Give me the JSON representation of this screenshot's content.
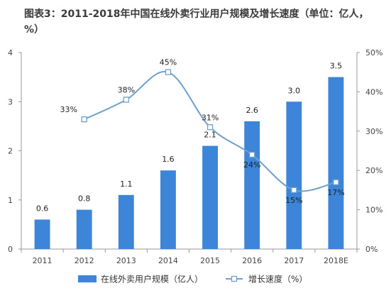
{
  "title": "图表3：2011-2018年中国在线外卖行业用户规模及增长速度（单位：亿人，%）",
  "chart_data": {
    "type": "bar",
    "title": "图表3：2011-2018年中国在线外卖行业用户规模及增长速度（单位：亿人，%）",
    "categories": [
      "2011",
      "2012",
      "2013",
      "2014",
      "2015",
      "2016",
      "2017",
      "2018E"
    ],
    "series": [
      {
        "name": "在线外卖用户规模（亿人）",
        "type": "bar",
        "axis": "left",
        "values": [
          0.6,
          0.8,
          1.1,
          1.6,
          2.1,
          2.6,
          3.0,
          3.5
        ],
        "labels": [
          "0.6",
          "0.8",
          "1.1",
          "1.6",
          "2.1",
          "2.6",
          "3.0",
          "3.5"
        ]
      },
      {
        "name": "增长速度（%）",
        "type": "line",
        "axis": "right",
        "values": [
          null,
          33,
          38,
          45,
          31,
          24,
          15,
          17
        ],
        "labels": [
          "",
          "33%",
          "38%",
          "45%",
          "31%",
          "24%",
          "15%",
          "17%"
        ]
      }
    ],
    "y_left": {
      "ylim": [
        0,
        4
      ],
      "ticks": [
        "0",
        "1",
        "2",
        "3",
        "4"
      ]
    },
    "y_right": {
      "ylim": [
        0,
        50
      ],
      "ticks": [
        "0%",
        "10%",
        "20%",
        "30%",
        "40%",
        "50%"
      ]
    },
    "legend_position": "bottom",
    "grid": false
  },
  "colors": {
    "bar": "#3d85d8",
    "line": "#6fa0cc",
    "marker_fill": "#ffffff",
    "axis": "#999999"
  }
}
